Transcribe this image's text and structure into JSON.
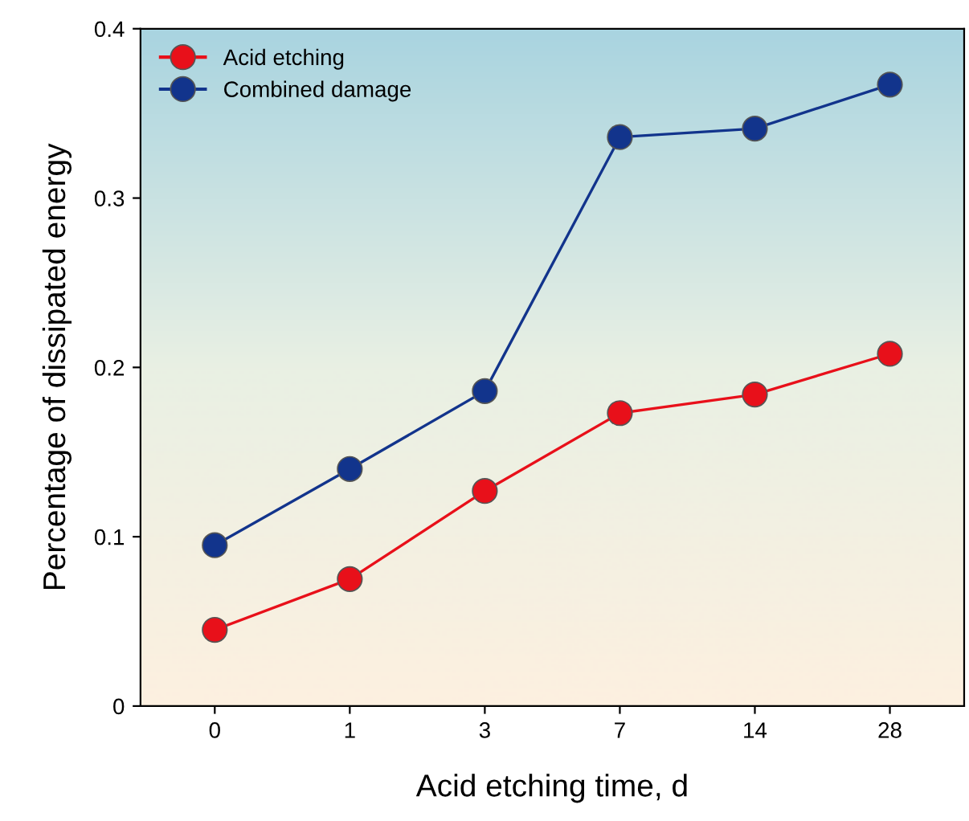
{
  "chart_data": {
    "type": "line",
    "xlabel": "Acid etching time, d",
    "ylabel": "Percentage of dissipated energy",
    "categories": [
      "0",
      "1",
      "3",
      "7",
      "14",
      "28"
    ],
    "series": [
      {
        "name": "Acid etching",
        "color": "#e8101a",
        "values": [
          0.045,
          0.075,
          0.127,
          0.173,
          0.184,
          0.208
        ]
      },
      {
        "name": "Combined damage",
        "color": "#12348c",
        "values": [
          0.095,
          0.14,
          0.186,
          0.336,
          0.341,
          0.367
        ]
      }
    ],
    "ylim": [
      0,
      0.4
    ],
    "yticks": [
      {
        "value": 0,
        "label": "0"
      },
      0.1,
      0.2,
      0.3,
      0.4
    ],
    "grid": false,
    "legend": "top left",
    "marker": "circle",
    "line_style": "solid"
  }
}
